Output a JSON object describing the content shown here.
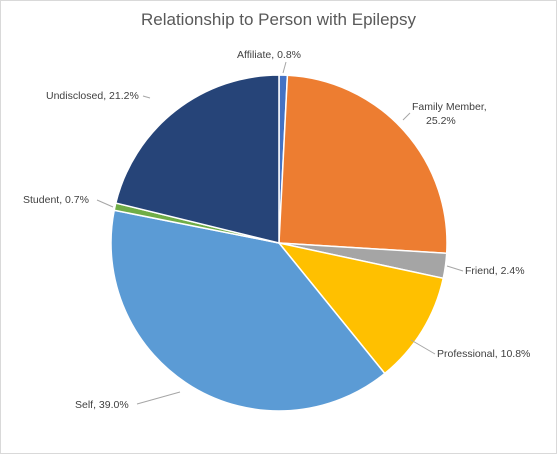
{
  "chart_data": {
    "type": "pie",
    "title": "Relationship to Person with Epilepsy",
    "legend": "none",
    "slices": [
      {
        "label": "Affiliate",
        "value": 0.8,
        "display": "Affiliate, 0.8%",
        "color": "#4472c4"
      },
      {
        "label": "Family Member",
        "value": 25.2,
        "display": [
          "Family Member,",
          "25.2%"
        ],
        "color": "#ed7d31"
      },
      {
        "label": "Friend",
        "value": 2.4,
        "display": "Friend, 2.4%",
        "color": "#a5a5a5"
      },
      {
        "label": "Professional",
        "value": 10.8,
        "display": "Professional, 10.8%",
        "color": "#ffc000"
      },
      {
        "label": "Self",
        "value": 39.0,
        "display": "Self, 39.0%",
        "color": "#5b9bd5"
      },
      {
        "label": "Student",
        "value": 0.7,
        "display": "Student, 0.7%",
        "color": "#70ad47"
      },
      {
        "label": "Undisclosed",
        "value": 21.2,
        "display": "Undisclosed, 21.2%",
        "color": "#264478"
      }
    ]
  }
}
